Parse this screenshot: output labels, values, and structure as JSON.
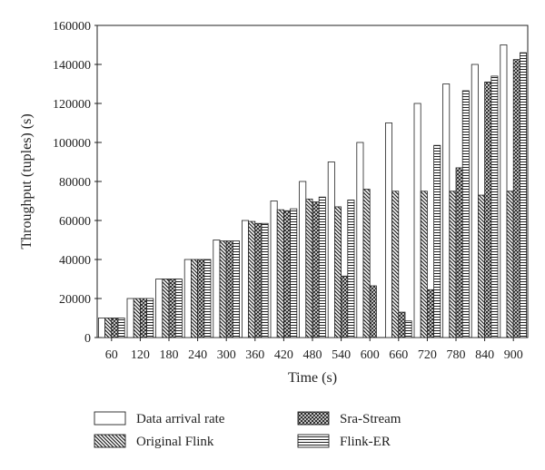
{
  "chart_data": {
    "type": "bar",
    "xlabel": "Time (s)",
    "ylabel": "Throughput (tuples) (s)",
    "ylim": [
      0,
      160000
    ],
    "yticks": [
      0,
      20000,
      40000,
      60000,
      80000,
      100000,
      120000,
      140000,
      160000
    ],
    "categories": [
      "60",
      "120",
      "180",
      "240",
      "300",
      "360",
      "420",
      "480",
      "540",
      "600",
      "660",
      "720",
      "780",
      "840",
      "900"
    ],
    "legend_position": "bottom",
    "grid": false,
    "series": [
      {
        "name": "Data arrival rate",
        "pattern": "white",
        "values": [
          10000,
          20000,
          30000,
          40000,
          50000,
          60000,
          70000,
          80000,
          90000,
          100000,
          110000,
          120000,
          130000,
          140000,
          150000
        ]
      },
      {
        "name": "Original Flink",
        "pattern": "diagonal",
        "values": [
          10000,
          20000,
          30000,
          40000,
          49500,
          59500,
          65500,
          71000,
          67000,
          76000,
          75000,
          75000,
          75000,
          73000,
          75000
        ]
      },
      {
        "name": "Sra-Stream",
        "pattern": "crosshatch",
        "values": [
          10000,
          20000,
          30000,
          40000,
          49500,
          58500,
          65000,
          69500,
          31500,
          26500,
          13000,
          24500,
          87000,
          131000,
          142500
        ]
      },
      {
        "name": "Flink-ER",
        "pattern": "horizontal",
        "values": [
          10000,
          20000,
          30000,
          40000,
          49500,
          58500,
          66000,
          72000,
          70500,
          0,
          8500,
          98500,
          126500,
          134000,
          146000
        ]
      }
    ]
  }
}
